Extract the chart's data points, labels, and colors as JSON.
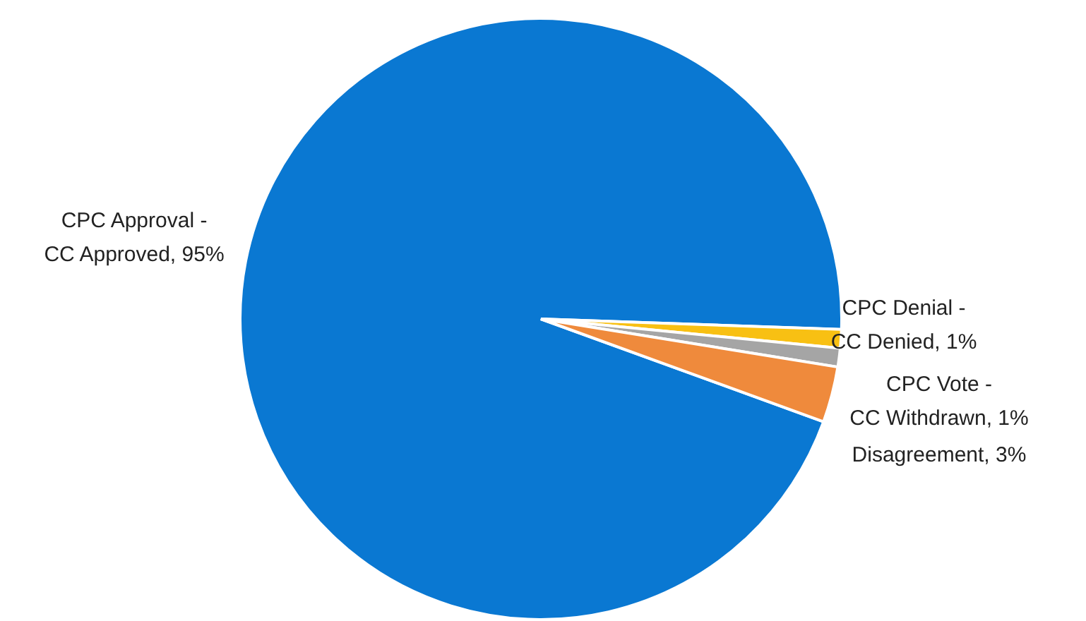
{
  "chart_data": {
    "type": "pie",
    "categories": [
      "CPC Approval - CC Approved, 95%",
      "CPC Denial - CC Denied, 1%",
      "CPC Vote - CC Withdrawn, 1%",
      "Disagreement, 3%"
    ],
    "values": [
      95,
      1,
      1,
      3
    ],
    "colors": [
      "#0a78d2",
      "#f8c013",
      "#a5a5a5",
      "#ef8a3c"
    ]
  }
}
